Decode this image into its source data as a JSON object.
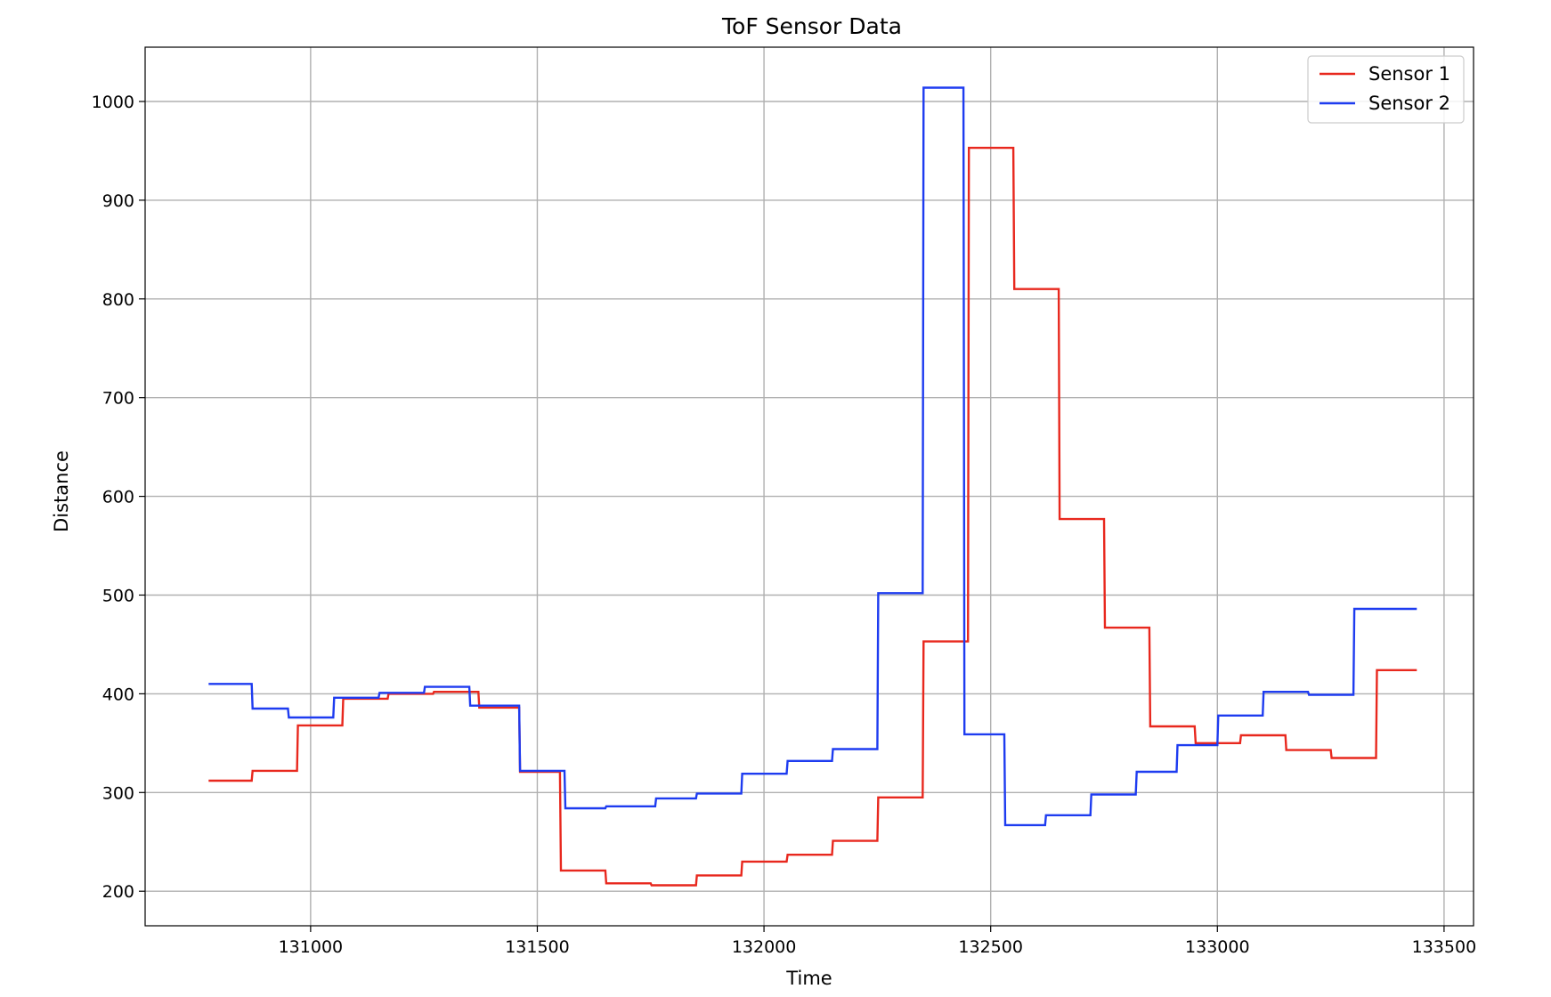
{
  "chart_data": {
    "type": "line",
    "title": "ToF Sensor Data",
    "xlabel": "Time",
    "ylabel": "Distance",
    "xlim": [
      130635,
      133565
    ],
    "ylim": [
      165,
      1055
    ],
    "x_ticks": [
      131000,
      131500,
      132000,
      132500,
      133000,
      133500
    ],
    "y_ticks": [
      200,
      300,
      400,
      500,
      600,
      700,
      800,
      900,
      1000
    ],
    "grid": true,
    "legend_position": "top-right",
    "series": [
      {
        "name": "Sensor 1",
        "color": "#e8281e",
        "x": [
          130775,
          130870,
          130872,
          130970,
          130972,
          131070,
          131072,
          131170,
          131172,
          131270,
          131272,
          131370,
          131372,
          131460,
          131462,
          131550,
          131552,
          131650,
          131652,
          131750,
          131752,
          131850,
          131852,
          131950,
          131952,
          132050,
          132052,
          132150,
          132152,
          132250,
          132252,
          132350,
          132352,
          132450,
          132452,
          132550,
          132552,
          132650,
          132652,
          132750,
          132752,
          132850,
          132852,
          132950,
          132952,
          133050,
          133052,
          133150,
          133152,
          133250,
          133252,
          133350,
          133352,
          133440
        ],
        "y": [
          312,
          312,
          322,
          322,
          368,
          368,
          395,
          395,
          400,
          400,
          402,
          402,
          386,
          386,
          321,
          321,
          221,
          221,
          208,
          208,
          206,
          206,
          216,
          216,
          230,
          230,
          237,
          237,
          251,
          251,
          295,
          295,
          453,
          453,
          953,
          953,
          810,
          810,
          577,
          577,
          467,
          467,
          367,
          367,
          350,
          350,
          358,
          358,
          343,
          343,
          335,
          335,
          424,
          424
        ]
      },
      {
        "name": "Sensor 2",
        "color": "#1e3cf0",
        "x": [
          130775,
          130870,
          130872,
          130950,
          130952,
          131050,
          131052,
          131150,
          131152,
          131250,
          131252,
          131350,
          131352,
          131460,
          131462,
          131560,
          131562,
          131650,
          131652,
          131760,
          131762,
          131850,
          131852,
          131950,
          131952,
          132050,
          132052,
          132150,
          132152,
          132250,
          132252,
          132350,
          132352,
          132440,
          132442,
          132530,
          132532,
          132620,
          132622,
          132720,
          132722,
          132820,
          132822,
          132910,
          132912,
          133000,
          133002,
          133100,
          133102,
          133200,
          133202,
          133300,
          133302,
          133410,
          133412,
          133440
        ],
        "y": [
          410,
          410,
          385,
          385,
          376,
          376,
          396,
          396,
          401,
          401,
          407,
          407,
          388,
          388,
          322,
          322,
          284,
          284,
          286,
          286,
          294,
          294,
          299,
          299,
          319,
          319,
          332,
          332,
          344,
          344,
          502,
          502,
          1014,
          1014,
          359,
          359,
          267,
          267,
          277,
          277,
          298,
          298,
          321,
          321,
          348,
          348,
          378,
          378,
          402,
          402,
          399,
          399,
          486,
          486,
          486,
          486
        ]
      }
    ]
  }
}
